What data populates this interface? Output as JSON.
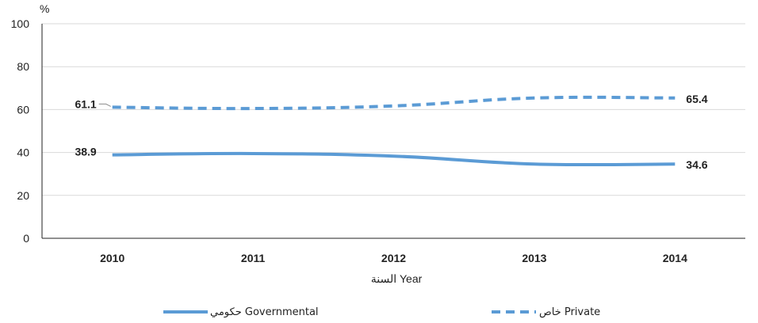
{
  "chart_data": {
    "type": "line",
    "ylabel": "%",
    "xlabel": "السنة Year",
    "ylim": [
      0,
      100
    ],
    "yticks": [
      0,
      20,
      40,
      60,
      80,
      100
    ],
    "categories": [
      "2010",
      "2011",
      "2012",
      "2013",
      "2014"
    ],
    "grid": "horizontal",
    "legend_position": "bottom",
    "series": [
      {
        "name": "حكومي Governmental",
        "values": [
          38.9,
          39.5,
          38.3,
          34.6,
          34.6
        ],
        "style": "solid",
        "color": "#5b9bd5",
        "labels": [
          {
            "index": 0,
            "text": "38.9"
          },
          {
            "index": 4,
            "text": "34.6"
          }
        ]
      },
      {
        "name": "خاص Private",
        "values": [
          61.1,
          60.5,
          61.7,
          65.4,
          65.4
        ],
        "style": "dashed",
        "color": "#5b9bd5",
        "labels": [
          {
            "index": 0,
            "text": "61.1"
          },
          {
            "index": 4,
            "text": "65.4"
          }
        ]
      }
    ]
  }
}
